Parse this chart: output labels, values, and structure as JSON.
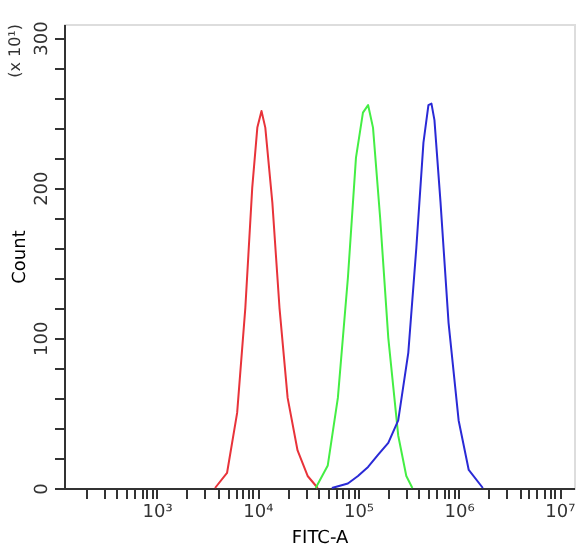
{
  "chart_data": {
    "type": "line",
    "xlabel": "FITC-A",
    "ylabel": "Count",
    "log": "x",
    "grid": false,
    "legend": false,
    "marker": "none",
    "line_style": "solid",
    "annotations": [
      "(x 10¹)"
    ],
    "xlim": [
      120,
      14000000
    ],
    "ylim": [
      0,
      309
    ],
    "xticks": [
      {
        "value": 200,
        "label": null
      },
      {
        "value": 300,
        "label": null
      },
      {
        "value": 400,
        "label": null
      },
      {
        "value": 500,
        "label": null
      },
      {
        "value": 600,
        "label": null
      },
      {
        "value": 700,
        "label": null
      },
      {
        "value": 800,
        "label": null
      },
      {
        "value": 900,
        "label": null
      },
      {
        "value": 1000,
        "label": "10³"
      },
      {
        "value": 2000,
        "label": null
      },
      {
        "value": 3000,
        "label": null
      },
      {
        "value": 4000,
        "label": null
      },
      {
        "value": 5000,
        "label": null
      },
      {
        "value": 6000,
        "label": null
      },
      {
        "value": 7000,
        "label": null
      },
      {
        "value": 8000,
        "label": null
      },
      {
        "value": 9000,
        "label": null
      },
      {
        "value": 10000,
        "label": "10⁴"
      },
      {
        "value": 20000,
        "label": null
      },
      {
        "value": 30000,
        "label": null
      },
      {
        "value": 40000,
        "label": null
      },
      {
        "value": 50000,
        "label": null
      },
      {
        "value": 60000,
        "label": null
      },
      {
        "value": 70000,
        "label": null
      },
      {
        "value": 80000,
        "label": null
      },
      {
        "value": 90000,
        "label": null
      },
      {
        "value": 100000,
        "label": "10⁵"
      },
      {
        "value": 200000,
        "label": null
      },
      {
        "value": 300000,
        "label": null
      },
      {
        "value": 400000,
        "label": null
      },
      {
        "value": 500000,
        "label": null
      },
      {
        "value": 600000,
        "label": null
      },
      {
        "value": 700000,
        "label": null
      },
      {
        "value": 800000,
        "label": null
      },
      {
        "value": 900000,
        "label": null
      },
      {
        "value": 1000000,
        "label": "10⁶"
      },
      {
        "value": 2000000,
        "label": null
      },
      {
        "value": 3000000,
        "label": null
      },
      {
        "value": 4000000,
        "label": null
      },
      {
        "value": 5000000,
        "label": null
      },
      {
        "value": 6000000,
        "label": null
      },
      {
        "value": 7000000,
        "label": null
      },
      {
        "value": 8000000,
        "label": null
      },
      {
        "value": 9000000,
        "label": null
      },
      {
        "value": 10000000,
        "label": "10⁷"
      }
    ],
    "yticks": [
      0,
      {
        "value": 20,
        "label": null
      },
      {
        "value": 40,
        "label": null
      },
      {
        "value": 60,
        "label": null
      },
      {
        "value": 80,
        "label": null
      },
      100,
      {
        "value": 120,
        "label": null
      },
      {
        "value": 140,
        "label": null
      },
      {
        "value": 160,
        "label": null
      },
      {
        "value": 180,
        "label": null
      },
      200,
      {
        "value": 220,
        "label": null
      },
      {
        "value": 240,
        "label": null
      },
      {
        "value": 260,
        "label": null
      },
      {
        "value": 280,
        "label": null
      },
      300
    ],
    "series": [
      {
        "color": "#e8333a",
        "x": [
          3800,
          5000,
          6300,
          7600,
          8900,
          10000,
          11000,
          12000,
          14100,
          16600,
          20000,
          25100,
          31600,
          39800
        ],
        "values": [
          0,
          10,
          50,
          120,
          200,
          240,
          251,
          240,
          190,
          120,
          60,
          25,
          8,
          0
        ]
      },
      {
        "color": "#44ee44",
        "x": [
          38000,
          50100,
          63100,
          79400,
          95500,
          112000,
          126000,
          141000,
          166000,
          200000,
          251000,
          302000,
          347000
        ],
        "values": [
          0,
          15,
          60,
          140,
          220,
          250,
          255,
          240,
          180,
          100,
          35,
          8,
          0
        ]
      },
      {
        "color": "#2a2ad6",
        "x": [
          55000,
          79400,
          100000,
          126000,
          158000,
          200000,
          251000,
          316000,
          380000,
          447000,
          501000,
          537000,
          575000,
          661000,
          794000,
          1000000,
          1260000,
          1740000
        ],
        "values": [
          0,
          3,
          8,
          14,
          22,
          30,
          45,
          90,
          160,
          230,
          255,
          256,
          245,
          190,
          110,
          45,
          12,
          0
        ]
      }
    ]
  }
}
